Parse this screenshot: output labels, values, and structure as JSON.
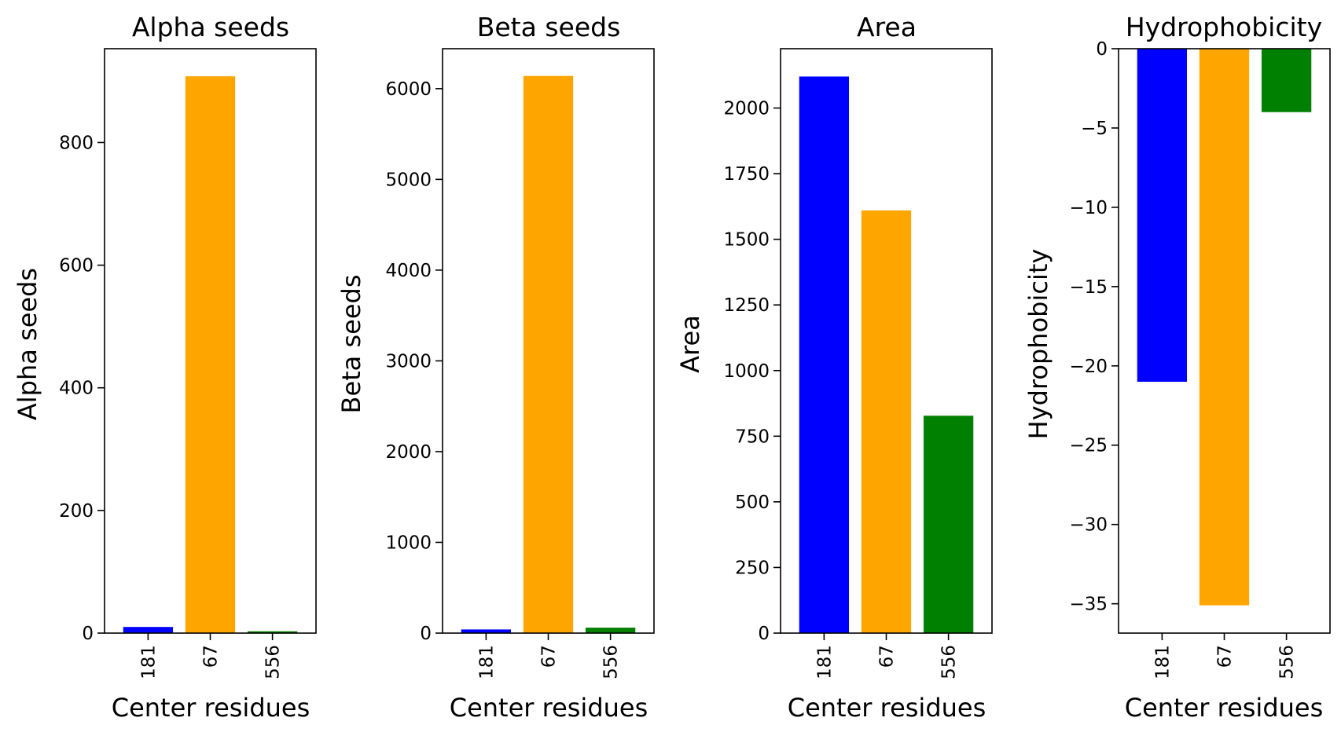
{
  "chart_data": [
    {
      "type": "bar",
      "title": "Alpha seeds",
      "xlabel": "Center residues",
      "ylabel": "Alpha seeds",
      "categories": [
        "181",
        "67",
        "556"
      ],
      "values": [
        10,
        908,
        3
      ],
      "colors": [
        "#0000ff",
        "#ffa500",
        "#008000"
      ],
      "ylim": [
        0,
        953
      ],
      "yticks": [
        0,
        200,
        400,
        600,
        800
      ],
      "grid": false
    },
    {
      "type": "bar",
      "title": "Beta seeds",
      "xlabel": "Center residues",
      "ylabel": "Beta seeds",
      "categories": [
        "181",
        "67",
        "556"
      ],
      "values": [
        40,
        6140,
        60
      ],
      "colors": [
        "#0000ff",
        "#ffa500",
        "#008000"
      ],
      "ylim": [
        0,
        6440
      ],
      "yticks": [
        0,
        1000,
        2000,
        3000,
        4000,
        5000,
        6000
      ],
      "grid": false
    },
    {
      "type": "bar",
      "title": "Area",
      "xlabel": "Center residues",
      "ylabel": "Area",
      "categories": [
        "181",
        "67",
        "556"
      ],
      "values": [
        2120,
        1610,
        828
      ],
      "colors": [
        "#0000ff",
        "#ffa500",
        "#008000"
      ],
      "ylim": [
        0,
        2226
      ],
      "yticks": [
        0,
        250,
        500,
        750,
        1000,
        1250,
        1500,
        1750,
        2000
      ],
      "grid": false
    },
    {
      "type": "bar",
      "title": "Hydrophobicity",
      "xlabel": "Center residues",
      "ylabel": "Hydrophobicity",
      "categories": [
        "181",
        "67",
        "556"
      ],
      "values": [
        -21,
        -35.1,
        -4
      ],
      "colors": [
        "#0000ff",
        "#ffa500",
        "#008000"
      ],
      "ylim": [
        -36.85,
        0
      ],
      "yticks": [
        0,
        -5,
        -10,
        -15,
        -20,
        -25,
        -30,
        -35
      ],
      "ytick_labels": [
        "0",
        "−5",
        "−10",
        "−15",
        "−20",
        "−25",
        "−30",
        "−35"
      ],
      "grid": false
    }
  ]
}
